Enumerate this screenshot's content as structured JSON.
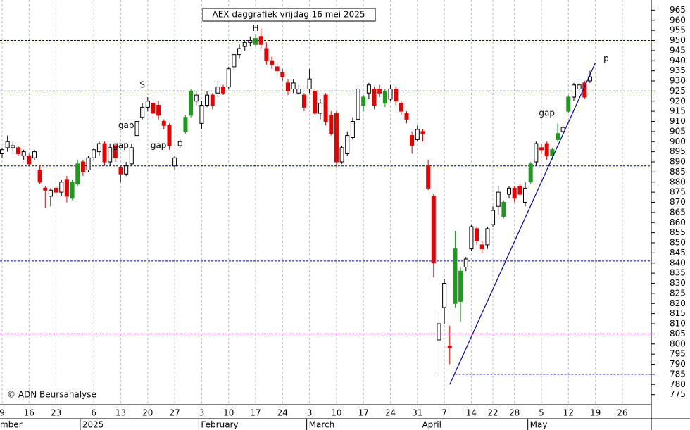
{
  "chart_data": {
    "type": "candlestick",
    "title": "AEX daggrafiek vrijdag 16 mei 2025",
    "credit": "© ADN Beursanalyse",
    "ylim": [
      770,
      970
    ],
    "yticks": [
      775,
      780,
      785,
      790,
      795,
      800,
      805,
      810,
      815,
      820,
      825,
      830,
      835,
      840,
      845,
      850,
      855,
      860,
      865,
      870,
      875,
      880,
      885,
      890,
      895,
      900,
      905,
      910,
      915,
      920,
      925,
      930,
      935,
      940,
      945,
      950,
      955,
      960,
      965
    ],
    "categories": [
      "9",
      null,
      null,
      null,
      null,
      "16",
      null,
      null,
      null,
      null,
      "23",
      null,
      null,
      null,
      null,
      null,
      null,
      "6",
      null,
      null,
      null,
      null,
      "13",
      null,
      null,
      null,
      null,
      "20",
      null,
      null,
      null,
      null,
      "27",
      null,
      null,
      null,
      null,
      "3",
      null,
      null,
      null,
      null,
      "10",
      null,
      null,
      null,
      null,
      "17",
      null,
      null,
      null,
      null,
      "24",
      null,
      null,
      null,
      null,
      "3",
      null,
      null,
      null,
      null,
      "10",
      null,
      null,
      null,
      null,
      "17",
      null,
      null,
      null,
      null,
      "24",
      null,
      null,
      null,
      null,
      "31",
      null,
      null,
      null,
      null,
      "7",
      null,
      null,
      null,
      null,
      "14",
      null,
      null,
      null,
      "22",
      null,
      null,
      null,
      "28",
      null,
      null,
      null,
      null,
      "5",
      null,
      null,
      null,
      null,
      "12",
      null,
      null,
      null,
      null,
      "19",
      null,
      null,
      null,
      null,
      "26",
      null,
      null,
      null,
      null
    ],
    "months": [
      "mber",
      null,
      null,
      null,
      null,
      null,
      null,
      null,
      null,
      null,
      null,
      null,
      null,
      null,
      null,
      "2025",
      null,
      null,
      null,
      null,
      null,
      null,
      null,
      null,
      null,
      null,
      null,
      null,
      null,
      null,
      null,
      null,
      null,
      null,
      null,
      null,
      null,
      "February",
      null,
      null,
      null,
      null,
      null,
      null,
      null,
      null,
      null,
      null,
      null,
      null,
      null,
      null,
      null,
      null,
      null,
      null,
      null,
      "March",
      null,
      null,
      null,
      null,
      null,
      null,
      null,
      null,
      null,
      null,
      null,
      null,
      null,
      null,
      null,
      null,
      null,
      null,
      null,
      null,
      "April",
      null,
      null,
      null,
      null,
      null,
      null,
      null,
      null,
      null,
      null,
      null,
      null,
      null,
      null,
      null,
      null,
      null,
      null,
      null,
      "May",
      null,
      null,
      null,
      null,
      null,
      null,
      null,
      null,
      null,
      null,
      null,
      null,
      null,
      null,
      null,
      null,
      null,
      null,
      null,
      null
    ],
    "candles": [
      [
        894,
        897,
        892,
        896
      ],
      [
        897,
        903,
        895,
        900
      ],
      [
        898,
        900,
        895,
        897
      ],
      [
        897,
        898,
        893,
        894
      ],
      [
        893,
        896,
        891,
        895
      ],
      [
        893,
        894,
        888,
        889
      ],
      [
        892,
        896,
        891,
        895
      ],
      [
        886,
        888,
        879,
        880
      ],
      [
        877,
        878,
        867,
        876
      ],
      [
        873,
        877,
        868,
        876
      ],
      [
        877,
        878,
        872,
        875
      ],
      [
        875,
        881,
        873,
        880
      ],
      [
        881,
        883,
        870,
        873
      ],
      [
        872,
        881,
        871,
        880
      ],
      [
        879,
        891,
        878,
        889
      ],
      [
        890,
        891,
        883,
        885
      ],
      [
        886,
        893,
        885,
        892
      ],
      [
        892,
        897,
        891,
        896
      ],
      [
        895,
        900,
        893,
        899
      ],
      [
        899,
        900,
        888,
        890
      ],
      [
        890,
        899,
        888,
        897
      ],
      [
        898,
        899,
        890,
        892
      ],
      [
        887,
        888,
        880,
        884
      ],
      [
        884,
        890,
        883,
        888
      ],
      [
        889,
        899,
        888,
        897
      ],
      [
        903,
        911,
        902,
        910
      ],
      [
        912,
        919,
        911,
        917
      ],
      [
        917,
        922,
        915,
        920
      ],
      [
        919,
        921,
        913,
        914
      ],
      [
        918,
        920,
        911,
        913
      ],
      [
        910,
        911,
        906,
        908
      ],
      [
        908,
        909,
        896,
        898
      ],
      [
        888,
        893,
        886,
        892
      ],
      [
        898,
        901,
        897,
        900
      ],
      [
        905,
        913,
        904,
        912
      ],
      [
        913,
        926,
        912,
        925
      ],
      [
        920,
        925,
        918,
        923
      ],
      [
        909,
        920,
        906,
        918
      ],
      [
        918,
        925,
        917,
        923
      ],
      [
        923,
        924,
        916,
        918
      ],
      [
        924,
        930,
        922,
        927
      ],
      [
        927,
        928,
        923,
        924
      ],
      [
        927,
        937,
        926,
        936
      ],
      [
        937,
        944,
        935,
        943
      ],
      [
        943,
        948,
        941,
        946
      ],
      [
        947,
        950,
        945,
        949
      ],
      [
        950,
        952,
        947,
        949
      ],
      [
        948,
        953,
        947,
        951
      ],
      [
        952,
        956,
        946,
        948
      ],
      [
        946,
        949,
        938,
        940
      ],
      [
        940,
        942,
        936,
        938
      ],
      [
        937,
        939,
        933,
        935
      ],
      [
        934,
        936,
        930,
        932
      ],
      [
        929,
        931,
        923,
        925
      ],
      [
        926,
        931,
        924,
        929
      ],
      [
        924,
        928,
        923,
        926
      ],
      [
        923,
        924,
        915,
        917
      ],
      [
        926,
        936,
        924,
        931
      ],
      [
        925,
        926,
        913,
        914
      ],
      [
        914,
        921,
        911,
        919
      ],
      [
        923,
        924,
        908,
        910
      ],
      [
        913,
        915,
        903,
        904
      ],
      [
        914,
        915,
        887,
        890
      ],
      [
        890,
        898,
        889,
        897
      ],
      [
        894,
        905,
        893,
        903
      ],
      [
        902,
        912,
        901,
        910
      ],
      [
        911,
        927,
        910,
        926
      ],
      [
        918,
        923,
        915,
        922
      ],
      [
        924,
        929,
        921,
        928
      ],
      [
        926,
        927,
        916,
        918
      ],
      [
        926,
        928,
        922,
        924
      ],
      [
        919,
        926,
        917,
        925
      ],
      [
        921,
        928,
        920,
        926
      ],
      [
        926,
        927,
        918,
        920
      ],
      [
        919,
        920,
        913,
        915
      ],
      [
        914,
        915,
        909,
        911
      ],
      [
        903,
        905,
        894,
        898
      ],
      [
        901,
        908,
        900,
        906
      ],
      [
        905,
        906,
        900,
        904
      ],
      [
        888,
        891,
        876,
        877
      ],
      [
        873,
        874,
        833,
        840
      ],
      [
        802,
        816,
        786,
        810
      ],
      [
        818,
        832,
        810,
        830
      ],
      [
        799,
        809,
        790,
        798
      ],
      [
        820,
        856,
        818,
        847
      ],
      [
        821,
        838,
        811,
        836
      ],
      [
        838,
        843,
        836,
        842
      ],
      [
        847,
        859,
        846,
        858
      ],
      [
        857,
        858,
        849,
        851
      ],
      [
        849,
        851,
        845,
        847
      ],
      [
        849,
        858,
        847,
        857
      ],
      [
        859,
        868,
        858,
        866
      ],
      [
        868,
        878,
        864,
        875
      ],
      [
        863,
        871,
        862,
        870
      ],
      [
        874,
        878,
        872,
        877
      ],
      [
        877,
        878,
        870,
        872
      ],
      [
        878,
        879,
        873,
        874
      ],
      [
        870,
        880,
        868,
        877
      ],
      [
        880,
        890,
        879,
        889
      ],
      [
        890,
        900,
        888,
        899
      ],
      [
        897,
        899,
        894,
        896
      ],
      [
        899,
        900,
        891,
        893
      ],
      [
        893,
        897,
        891,
        896
      ],
      [
        901,
        909,
        900,
        904
      ],
      [
        905,
        908,
        904,
        907
      ],
      [
        915,
        923,
        914,
        922
      ],
      [
        922,
        929,
        920,
        928
      ],
      [
        926,
        929,
        924,
        928
      ],
      [
        929,
        930,
        921,
        922
      ],
      [
        930,
        935,
        929,
        932
      ],
      null,
      null,
      null,
      null,
      null,
      null,
      null,
      null,
      null,
      null
    ],
    "kinds": [
      "w",
      "w",
      "w",
      "r",
      "w",
      "r",
      "w",
      "r",
      "r",
      "w",
      "r",
      "w",
      "r",
      "g",
      "g",
      "r",
      "w",
      "w",
      "w",
      "r",
      "w",
      "r",
      "r",
      "w",
      "w",
      "w",
      "w",
      "w",
      "r",
      "r",
      "r",
      "r",
      "w",
      "w",
      "g",
      "g",
      "w",
      "w",
      "w",
      "r",
      "w",
      "r",
      "w",
      "w",
      "w",
      "w",
      "w",
      "g",
      "r",
      "r",
      "r",
      "r",
      "r",
      "r",
      "w",
      "w",
      "r",
      "w",
      "r",
      "w",
      "r",
      "r",
      "r",
      "w",
      "w",
      "w",
      "w",
      "g",
      "w",
      "r",
      "r",
      "g",
      "w",
      "r",
      "r",
      "r",
      "r",
      "w",
      "r",
      "r",
      "r",
      "w",
      "w",
      "r",
      "g",
      "g",
      "w",
      "w",
      "r",
      "r",
      "w",
      "w",
      "w",
      "g",
      "w",
      "r",
      "r",
      "w",
      "g",
      "w",
      "r",
      "r",
      "g",
      "g",
      "w",
      "g",
      "w",
      "w",
      "r",
      "w",
      null,
      null,
      null,
      null,
      null,
      null,
      null,
      null,
      null,
      null
    ],
    "kind_colors": {
      "w": "#ffffff",
      "g": "#1e9a1e",
      "r": "#e60000"
    },
    "hlines": [
      {
        "value": 950,
        "color": "#0000aa"
      },
      {
        "value": 925,
        "color": "#0000aa"
      },
      {
        "value": 888,
        "color": "#0000aa"
      },
      {
        "value": 841,
        "color": "#0000aa"
      },
      {
        "value": 805,
        "color": "#cc00cc"
      },
      {
        "value": 785,
        "color": "#0000aa",
        "start": 84
      }
    ],
    "trendline": {
      "color": "#0000aa",
      "points": [
        [
          83,
          780
        ],
        [
          110,
          939
        ]
      ]
    },
    "annotations": [
      {
        "text": "S",
        "index": 26,
        "value": 928,
        "color": "#aaaaaa"
      },
      {
        "text": "H",
        "index": 47,
        "value": 956,
        "color": "#aaaaaa"
      },
      {
        "text": "gap",
        "index": 23,
        "value": 908,
        "color": "#aaaaaa"
      },
      {
        "text": "gap",
        "index": 22,
        "value": 898,
        "color": "#aaaaaa"
      },
      {
        "text": "gap",
        "index": 29,
        "value": 898,
        "color": "#aaaaaa"
      },
      {
        "text": "gap",
        "index": 101,
        "value": 914,
        "color": "#000000"
      },
      {
        "text": "p",
        "index": 112,
        "value": 941,
        "color": "#0000cc"
      }
    ]
  }
}
